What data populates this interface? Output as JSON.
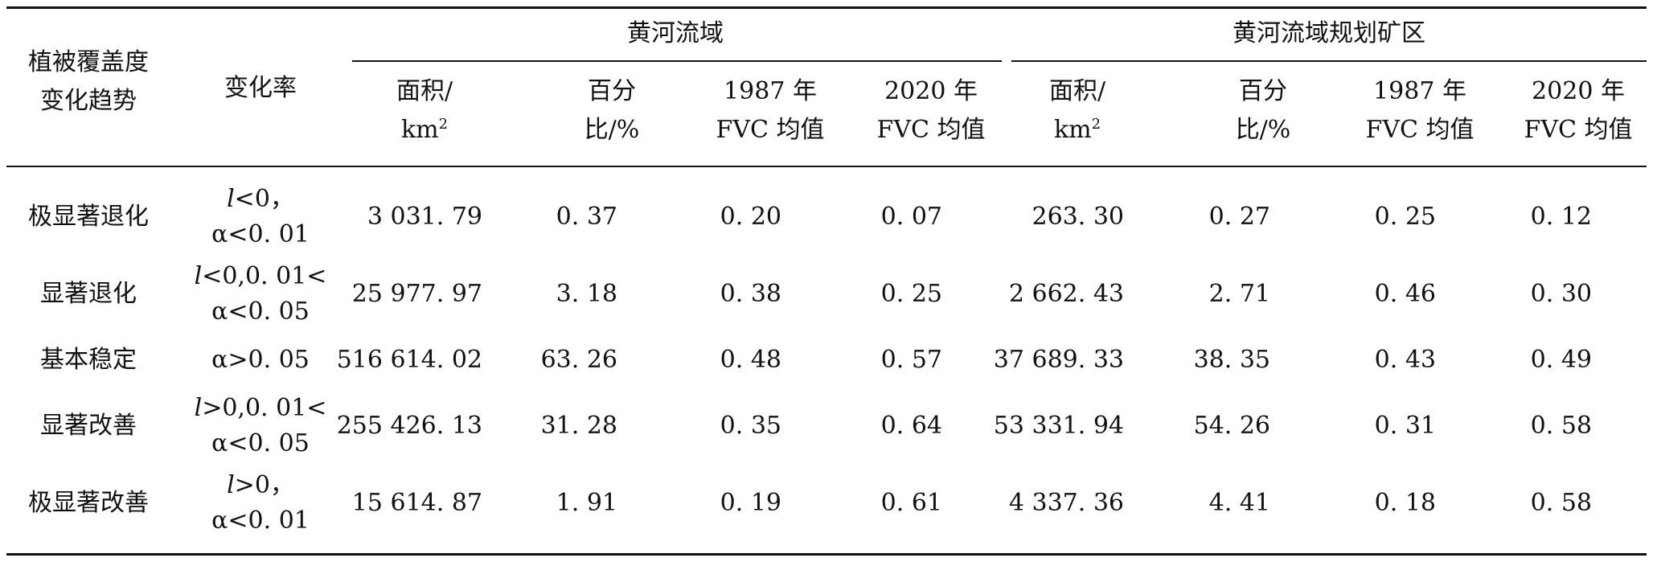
{
  "header": {
    "col1": [
      "植被覆盖度",
      "变化趋势"
    ],
    "col2": "变化率",
    "group1": "黄河流域",
    "group2": "黄河流域规划矿区",
    "sub": {
      "area": [
        "面积/",
        "km"
      ],
      "area_sup": "2",
      "pct": [
        "百分",
        "比/%"
      ],
      "fvc1987": [
        "1987 年",
        "FVC 均值"
      ],
      "fvc2020": [
        "2020 年",
        "FVC 均值"
      ]
    }
  },
  "rows": [
    {
      "trend": "极显著退化",
      "rate": [
        "<i>l</i>&lt;0，",
        "α&lt;0. 01"
      ],
      "yr": [
        "3 031. 79",
        "0. 37",
        "0. 20",
        "0. 07"
      ],
      "mine": [
        "263. 30",
        "0. 27",
        "0. 25",
        "0. 12"
      ]
    },
    {
      "trend": "显著退化",
      "rate": [
        "<i>l</i>&lt;0,0. 01&lt;",
        "α&lt;0. 05"
      ],
      "yr": [
        "25 977. 97",
        "3. 18",
        "0. 38",
        "0. 25"
      ],
      "mine": [
        "2 662. 43",
        "2. 71",
        "0. 46",
        "0. 30"
      ]
    },
    {
      "trend": "基本稳定",
      "rate": [
        "α&gt;0. 05"
      ],
      "yr": [
        "516 614. 02",
        "63. 26",
        "0. 48",
        "0. 57"
      ],
      "mine": [
        "37 689. 33",
        "38. 35",
        "0. 43",
        "0. 49"
      ]
    },
    {
      "trend": "显著改善",
      "rate": [
        "<i>l</i>&gt;0,0. 01&lt;",
        "α&lt;0. 05"
      ],
      "yr": [
        "255 426. 13",
        "31. 28",
        "0. 35",
        "0. 64"
      ],
      "mine": [
        "53 331. 94",
        "54. 26",
        "0. 31",
        "0. 58"
      ]
    },
    {
      "trend": "极显著改善",
      "rate": [
        "<i>l</i>&gt;0，",
        "α&lt;0. 01"
      ],
      "yr": [
        "15 614. 87",
        "1. 91",
        "0. 19",
        "0. 61"
      ],
      "mine": [
        "4 337. 36",
        "4. 41",
        "0. 18",
        "0. 58"
      ]
    }
  ]
}
